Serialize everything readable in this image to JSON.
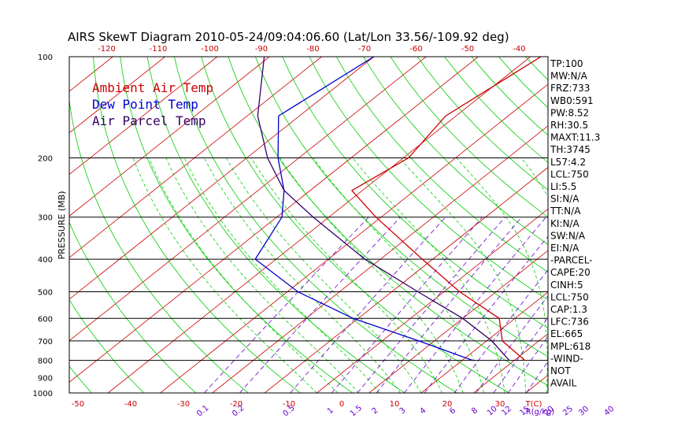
{
  "colors": {
    "temp": "#cc0000",
    "dew": "#0000cc",
    "parcel": "#330066",
    "dry_adiabat": "#00cc00",
    "moist_adiabat": "#00cc00",
    "isotherm": "#cc0000",
    "mixing_ratio": "#6600cc",
    "isobar": "#000000",
    "tick_top": "#cc0000",
    "tick_bottom_temp": "#cc0000",
    "tick_bottom_mix": "#6600cc"
  },
  "chart_data": {
    "type": "line",
    "title": "AIRS SkewT Diagram 2010-05-24/09:04:06.60 (Lat/Lon 33.56/-109.92 deg)",
    "ylabel": "PRESSURE (MB)",
    "y_scale": "log",
    "ylim": [
      1000,
      100
    ],
    "grid": true,
    "pressure_ticks": [
      100,
      200,
      300,
      400,
      500,
      600,
      700,
      800,
      900,
      1000
    ],
    "isobar_lines": [
      200,
      300,
      400,
      500,
      600,
      700,
      800,
      1000
    ],
    "top_temp_ticks": [
      -120,
      -110,
      -100,
      -90,
      -80,
      -70,
      -60,
      -50,
      -40
    ],
    "bottom_temp_ticks": [
      -50,
      -40,
      -30,
      -20,
      -10,
      0,
      10,
      20,
      30
    ],
    "bottom_temp_unit": "T(C)",
    "mixing_ratio_ticks": [
      "0.1",
      "0.2",
      "0.5",
      "1",
      "1.5",
      "2",
      "3",
      "4",
      "6",
      "8",
      "10",
      "12",
      "15",
      "20",
      "25",
      "30",
      "40"
    ],
    "mixing_ratio_unit": "R(g/kg)",
    "legend_placement": "top-left",
    "legend": [
      {
        "label": "Ambient Air Temp",
        "color": "#cc0000"
      },
      {
        "label": "Dew Point Temp",
        "color": "#0000cc"
      },
      {
        "label": "Air Parcel Temp",
        "color": "#330066"
      }
    ],
    "series": [
      {
        "name": "Ambient Air Temp",
        "color": "#cc0000",
        "points": [
          [
            100,
            -58
          ],
          [
            150,
            -62
          ],
          [
            200,
            -59
          ],
          [
            250,
            -62
          ],
          [
            300,
            -51
          ],
          [
            400,
            -32
          ],
          [
            500,
            -17
          ],
          [
            600,
            -3
          ],
          [
            700,
            3
          ],
          [
            800,
            12
          ]
        ]
      },
      {
        "name": "Dew Point Temp",
        "color": "#0000cc",
        "points": [
          [
            100,
            -90
          ],
          [
            150,
            -94
          ],
          [
            200,
            -84
          ],
          [
            250,
            -75
          ],
          [
            300,
            -69
          ],
          [
            400,
            -64
          ],
          [
            500,
            -48
          ],
          [
            600,
            -31
          ],
          [
            700,
            -13
          ],
          [
            800,
            2
          ]
        ]
      },
      {
        "name": "Air Parcel Temp",
        "color": "#330066",
        "points": [
          [
            100,
            -111
          ],
          [
            150,
            -98
          ],
          [
            200,
            -86
          ],
          [
            250,
            -75
          ],
          [
            300,
            -63
          ],
          [
            400,
            -43
          ],
          [
            500,
            -25
          ],
          [
            600,
            -10
          ],
          [
            700,
            1
          ],
          [
            800,
            9
          ]
        ]
      }
    ],
    "stats": [
      "TP:100",
      "MW:N/A",
      "FRZ:733",
      "WB0:591",
      "PW:8.52",
      "RH:30.5",
      "MAXT:11.3",
      "TH:3745",
      "L57:4.2",
      "LCL:750",
      "LI:5.5",
      "SI:N/A",
      "TT:N/A",
      "KI:N/A",
      "SW:N/A",
      "EI:N/A",
      "-PARCEL-",
      "CAPE:20",
      "CINH:5",
      "LCL:750",
      "CAP:1.3",
      "LFC:736",
      "EL:665",
      "MPL:618",
      "-WIND-",
      "NOT",
      "AVAIL"
    ]
  }
}
